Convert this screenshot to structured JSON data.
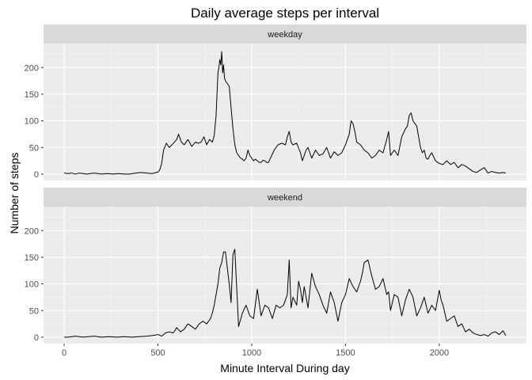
{
  "chart_data": {
    "type": "line",
    "title": "Daily average steps per interval",
    "xlabel": "Minute Interval During day",
    "ylabel": "Number of steps",
    "xlim": [
      -110,
      2465
    ],
    "ylim": [
      -12,
      245
    ],
    "x_ticks": [
      0,
      500,
      1000,
      1500,
      2000
    ],
    "x_tick_labels": [
      "0",
      "500",
      "1000",
      "1500",
      "2000"
    ],
    "y_ticks": [
      0,
      50,
      100,
      150,
      200
    ],
    "y_tick_labels": [
      "0",
      "50",
      "100",
      "150",
      "200"
    ],
    "grid": true,
    "legend": "none",
    "panels": [
      {
        "label": "weekday",
        "series": [
          {
            "x": [
              0,
              20,
              40,
              60,
              80,
              100,
              120,
              140,
              160,
              180,
              200,
              230,
              260,
              290,
              320,
              350,
              380,
              410,
              440,
              470,
              500,
              510,
              520,
              530,
              545,
              560,
              575,
              600,
              610,
              625,
              640,
              660,
              680,
              700,
              715,
              730,
              745,
              760,
              775,
              790,
              800,
              810,
              820,
              825,
              830,
              835,
              840,
              845,
              850,
              855,
              860,
              870,
              880,
              890,
              900,
              910,
              920,
              930,
              940,
              950,
              960,
              970,
              980,
              990,
              1000,
              1010,
              1020,
              1030,
              1040,
              1050,
              1060,
              1070,
              1080,
              1090,
              1100,
              1120,
              1140,
              1160,
              1180,
              1190,
              1200,
              1210,
              1220,
              1240,
              1260,
              1270,
              1290,
              1300,
              1320,
              1340,
              1360,
              1380,
              1400,
              1420,
              1440,
              1460,
              1480,
              1500,
              1520,
              1530,
              1540,
              1550,
              1560,
              1580,
              1600,
              1620,
              1640,
              1660,
              1680,
              1700,
              1720,
              1730,
              1740,
              1760,
              1780,
              1800,
              1820,
              1830,
              1840,
              1850,
              1860,
              1870,
              1880,
              1890,
              1900,
              1910,
              1920,
              1930,
              1940,
              1950,
              1960,
              1980,
              2000,
              2020,
              2040,
              2060,
              2080,
              2100,
              2120,
              2140,
              2160,
              2180,
              2200,
              2220,
              2240,
              2260,
              2280,
              2300,
              2320,
              2340,
              2355
            ],
            "y": [
              2,
              1,
              2,
              0,
              2,
              1,
              0,
              1,
              2,
              1,
              0,
              1,
              0,
              1,
              0,
              0,
              2,
              3,
              2,
              1,
              4,
              8,
              20,
              45,
              58,
              50,
              55,
              65,
              75,
              60,
              55,
              65,
              52,
              60,
              58,
              60,
              70,
              55,
              65,
              60,
              72,
              110,
              190,
              200,
              215,
              205,
              230,
              190,
              205,
              180,
              175,
              170,
              165,
              125,
              85,
              55,
              40,
              35,
              30,
              28,
              25,
              30,
              45,
              35,
              30,
              25,
              28,
              25,
              22,
              22,
              26,
              25,
              22,
              22,
              30,
              45,
              55,
              58,
              55,
              70,
              80,
              60,
              55,
              58,
              40,
              25,
              45,
              50,
              30,
              45,
              35,
              38,
              50,
              30,
              42,
              35,
              40,
              55,
              75,
              100,
              95,
              80,
              60,
              55,
              45,
              40,
              30,
              35,
              45,
              40,
              65,
              80,
              35,
              45,
              35,
              70,
              85,
              90,
              110,
              115,
              100,
              95,
              90,
              70,
              50,
              40,
              45,
              30,
              28,
              35,
              40,
              25,
              20,
              18,
              25,
              18,
              22,
              12,
              18,
              15,
              10,
              5,
              3,
              8,
              12,
              2,
              5,
              3,
              2,
              3,
              2
            ],
            "name": ""
          }
        ]
      },
      {
        "label": "weekend",
        "series": [
          {
            "x": [
              0,
              20,
              40,
              60,
              80,
              100,
              130,
              160,
              200,
              240,
              280,
              320,
              360,
              400,
              440,
              470,
              500,
              520,
              540,
              560,
              580,
              590,
              600,
              620,
              640,
              660,
              680,
              700,
              720,
              740,
              760,
              780,
              790,
              800,
              810,
              820,
              830,
              840,
              850,
              860,
              870,
              880,
              890,
              900,
              910,
              930,
              950,
              970,
              990,
              1010,
              1030,
              1050,
              1070,
              1090,
              1110,
              1130,
              1150,
              1170,
              1190,
              1200,
              1210,
              1220,
              1240,
              1250,
              1260,
              1270,
              1280,
              1290,
              1300,
              1320,
              1340,
              1360,
              1380,
              1400,
              1420,
              1440,
              1460,
              1480,
              1500,
              1520,
              1540,
              1560,
              1580,
              1590,
              1600,
              1620,
              1640,
              1660,
              1680,
              1700,
              1720,
              1730,
              1740,
              1760,
              1780,
              1800,
              1820,
              1840,
              1860,
              1880,
              1900,
              1920,
              1940,
              1960,
              1980,
              2000,
              2010,
              2020,
              2040,
              2060,
              2080,
              2100,
              2120,
              2140,
              2160,
              2180,
              2200,
              2220,
              2240,
              2260,
              2280,
              2300,
              2320,
              2340,
              2355
            ],
            "y": [
              0,
              0,
              1,
              2,
              1,
              0,
              1,
              2,
              0,
              1,
              0,
              1,
              0,
              1,
              2,
              3,
              5,
              2,
              8,
              10,
              8,
              12,
              18,
              10,
              15,
              25,
              20,
              15,
              25,
              30,
              25,
              35,
              45,
              60,
              80,
              100,
              130,
              140,
              160,
              160,
              130,
              100,
              65,
              155,
              165,
              20,
              45,
              60,
              40,
              35,
              90,
              40,
              60,
              55,
              35,
              60,
              55,
              60,
              80,
              145,
              55,
              75,
              60,
              105,
              90,
              65,
              95,
              75,
              55,
              120,
              95,
              80,
              60,
              45,
              85,
              65,
              30,
              65,
              80,
              110,
              95,
              85,
              105,
              120,
              140,
              145,
              115,
              90,
              95,
              110,
              80,
              85,
              50,
              80,
              75,
              40,
              70,
              90,
              75,
              40,
              55,
              75,
              45,
              60,
              50,
              88,
              70,
              60,
              30,
              35,
              40,
              20,
              25,
              10,
              15,
              8,
              5,
              3,
              5,
              2,
              8,
              10,
              5,
              12,
              3
            ],
            "name": ""
          }
        ]
      }
    ]
  }
}
